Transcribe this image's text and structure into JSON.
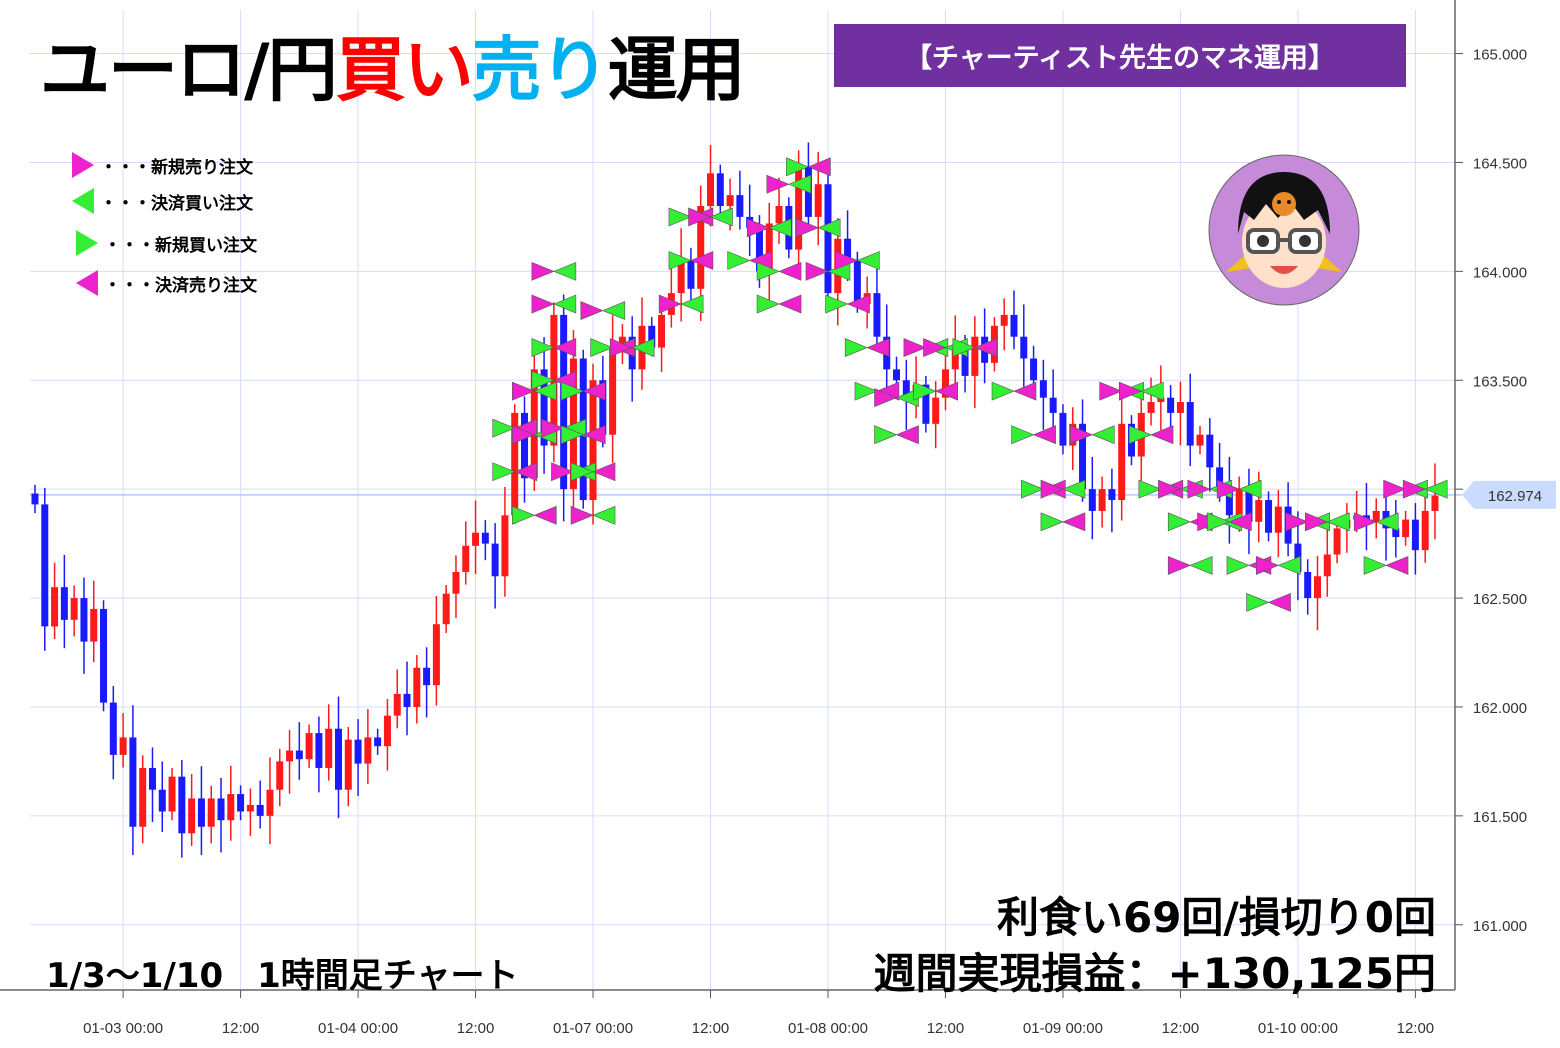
{
  "header": {
    "title_part1": "ユーロ/円",
    "title_part2": "買い",
    "title_part3": "売り",
    "title_part4": "運用",
    "badge": "【チャーティスト先生のマネ運用】"
  },
  "legend": [
    {
      "label": "・・・新規売り注文",
      "icon": "triangle-right-magenta",
      "color": "#ee22cc"
    },
    {
      "label": "・・・決済買い注文",
      "icon": "triangle-left-green",
      "color": "#33ee33"
    },
    {
      "label": "・・・新規買い注文",
      "icon": "triangle-right-green",
      "color": "#33ee33"
    },
    {
      "label": "・・・決済売り注文",
      "icon": "triangle-left-magenta",
      "color": "#ee22cc"
    }
  ],
  "stats": {
    "line1": "利食い69回/損切り0回",
    "line2": "週間実現損益：+130,125円"
  },
  "period_label": "1/3～1/10　1時間足チャート",
  "avatar": {
    "icon": "teacher-avatar-icon",
    "bg": "#c58bd8"
  },
  "colors": {
    "title_black": "#000000",
    "title_buy": "#ff0000",
    "title_sell": "#00b0f0",
    "badge_bg": "#7030a0",
    "candle_up": "#ff1a1a",
    "candle_down": "#1a1aff",
    "grid": "#d6dcff",
    "current_price_line": "#b4c8ff",
    "price_tag_bg": "#c9dcff"
  },
  "chart_data": {
    "type": "candlestick",
    "timeframe": "1h",
    "x_tick_labels": [
      "01-03 00:00",
      "12:00",
      "01-04 00:00",
      "12:00",
      "01-07 00:00",
      "12:00",
      "01-08 00:00",
      "12:00",
      "01-09 00:00",
      "12:00",
      "01-10 00:00",
      "12:00"
    ],
    "y_tick_labels": [
      "161.000",
      "161.500",
      "162.000",
      "162.500",
      "163.000",
      "163.500",
      "164.000",
      "164.500",
      "165.000"
    ],
    "ylim": [
      160.9,
      165.2
    ],
    "current_price": 162.974,
    "current_price_label": "162.974",
    "grid": true,
    "close_path": [
      [
        0,
        162.93
      ],
      [
        1,
        162.37
      ],
      [
        2,
        162.55
      ],
      [
        3,
        162.4
      ],
      [
        4,
        162.5
      ],
      [
        5,
        162.3
      ],
      [
        6,
        162.45
      ],
      [
        7,
        162.02
      ],
      [
        8,
        161.78
      ],
      [
        9,
        161.86
      ],
      [
        10,
        161.45
      ],
      [
        11,
        161.72
      ],
      [
        12,
        161.62
      ],
      [
        13,
        161.52
      ],
      [
        14,
        161.68
      ],
      [
        15,
        161.42
      ],
      [
        16,
        161.58
      ],
      [
        17,
        161.45
      ],
      [
        18,
        161.58
      ],
      [
        19,
        161.48
      ],
      [
        20,
        161.6
      ],
      [
        21,
        161.52
      ],
      [
        22,
        161.55
      ],
      [
        23,
        161.5
      ],
      [
        24,
        161.62
      ],
      [
        25,
        161.75
      ],
      [
        26,
        161.8
      ],
      [
        27,
        161.76
      ],
      [
        28,
        161.88
      ],
      [
        29,
        161.72
      ],
      [
        30,
        161.9
      ],
      [
        31,
        161.62
      ],
      [
        32,
        161.85
      ],
      [
        33,
        161.74
      ],
      [
        34,
        161.86
      ],
      [
        35,
        161.82
      ],
      [
        36,
        161.96
      ],
      [
        37,
        162.06
      ],
      [
        38,
        162.0
      ],
      [
        39,
        162.18
      ],
      [
        40,
        162.1
      ],
      [
        41,
        162.38
      ],
      [
        42,
        162.52
      ],
      [
        43,
        162.62
      ],
      [
        44,
        162.74
      ],
      [
        45,
        162.8
      ],
      [
        46,
        162.75
      ],
      [
        47,
        162.6
      ],
      [
        48,
        162.88
      ],
      [
        49,
        163.35
      ],
      [
        50,
        163.05
      ],
      [
        51,
        163.55
      ],
      [
        52,
        163.2
      ],
      [
        53,
        163.8
      ],
      [
        54,
        163.0
      ],
      [
        55,
        163.6
      ],
      [
        56,
        162.95
      ],
      [
        57,
        163.5
      ],
      [
        58,
        163.25
      ],
      [
        59,
        163.65
      ],
      [
        60,
        163.7
      ],
      [
        61,
        163.55
      ],
      [
        62,
        163.75
      ],
      [
        63,
        163.65
      ],
      [
        64,
        163.8
      ],
      [
        65,
        163.9
      ],
      [
        66,
        164.05
      ],
      [
        67,
        163.92
      ],
      [
        68,
        164.3
      ],
      [
        69,
        164.45
      ],
      [
        70,
        164.3
      ],
      [
        71,
        164.35
      ],
      [
        72,
        164.25
      ],
      [
        73,
        164.2
      ],
      [
        74,
        164.0
      ],
      [
        75,
        164.22
      ],
      [
        76,
        164.3
      ],
      [
        77,
        164.1
      ],
      [
        78,
        164.48
      ],
      [
        79,
        164.25
      ],
      [
        80,
        164.4
      ],
      [
        81,
        163.9
      ],
      [
        82,
        164.15
      ],
      [
        83,
        164.05
      ],
      [
        84,
        163.85
      ],
      [
        85,
        163.9
      ],
      [
        86,
        163.7
      ],
      [
        87,
        163.55
      ],
      [
        88,
        163.5
      ],
      [
        89,
        163.42
      ],
      [
        90,
        163.48
      ],
      [
        91,
        163.3
      ],
      [
        92,
        163.42
      ],
      [
        93,
        163.55
      ],
      [
        94,
        163.65
      ],
      [
        95,
        163.52
      ],
      [
        96,
        163.7
      ],
      [
        97,
        163.58
      ],
      [
        98,
        163.75
      ],
      [
        99,
        163.8
      ],
      [
        100,
        163.7
      ],
      [
        101,
        163.6
      ],
      [
        102,
        163.5
      ],
      [
        103,
        163.42
      ],
      [
        104,
        163.35
      ],
      [
        105,
        163.2
      ],
      [
        106,
        163.3
      ],
      [
        107,
        163.0
      ],
      [
        108,
        162.9
      ],
      [
        109,
        163.0
      ],
      [
        110,
        162.95
      ],
      [
        111,
        163.3
      ],
      [
        112,
        163.15
      ],
      [
        113,
        163.35
      ],
      [
        114,
        163.4
      ],
      [
        115,
        163.42
      ],
      [
        116,
        163.35
      ],
      [
        117,
        163.4
      ],
      [
        118,
        163.2
      ],
      [
        119,
        163.25
      ],
      [
        120,
        163.1
      ],
      [
        121,
        163.0
      ],
      [
        122,
        162.88
      ],
      [
        123,
        163.0
      ],
      [
        124,
        162.85
      ],
      [
        125,
        162.95
      ],
      [
        126,
        162.8
      ],
      [
        127,
        162.92
      ],
      [
        128,
        162.75
      ],
      [
        129,
        162.62
      ],
      [
        130,
        162.5
      ],
      [
        131,
        162.6
      ],
      [
        132,
        162.7
      ],
      [
        133,
        162.82
      ],
      [
        134,
        162.86
      ],
      [
        135,
        162.88
      ],
      [
        136,
        162.85
      ],
      [
        137,
        162.9
      ],
      [
        138,
        162.82
      ],
      [
        139,
        162.78
      ],
      [
        140,
        162.86
      ],
      [
        141,
        162.72
      ],
      [
        142,
        162.9
      ],
      [
        143,
        162.97
      ]
    ],
    "orders": [
      {
        "x": 49,
        "y": 163.28,
        "type": "buy"
      },
      {
        "x": 49,
        "y": 163.08,
        "type": "buy"
      },
      {
        "x": 51,
        "y": 163.45,
        "type": "sell"
      },
      {
        "x": 51,
        "y": 163.25,
        "type": "sell"
      },
      {
        "x": 51,
        "y": 162.88,
        "type": "buy"
      },
      {
        "x": 53,
        "y": 164.0,
        "type": "sell"
      },
      {
        "x": 53,
        "y": 163.85,
        "type": "sell"
      },
      {
        "x": 53,
        "y": 163.65,
        "type": "buy"
      },
      {
        "x": 53,
        "y": 163.5,
        "type": "buy"
      },
      {
        "x": 54,
        "y": 163.28,
        "type": "sell"
      },
      {
        "x": 55,
        "y": 163.08,
        "type": "sell"
      },
      {
        "x": 56,
        "y": 163.45,
        "type": "buy"
      },
      {
        "x": 56,
        "y": 163.25,
        "type": "buy"
      },
      {
        "x": 57,
        "y": 162.88,
        "type": "sell"
      },
      {
        "x": 57,
        "y": 163.08,
        "type": "buy"
      },
      {
        "x": 58,
        "y": 163.82,
        "type": "sell"
      },
      {
        "x": 59,
        "y": 163.65,
        "type": "buy"
      },
      {
        "x": 61,
        "y": 163.65,
        "type": "sell"
      },
      {
        "x": 66,
        "y": 163.85,
        "type": "sell"
      },
      {
        "x": 67,
        "y": 164.25,
        "type": "buy"
      },
      {
        "x": 67,
        "y": 164.05,
        "type": "buy"
      },
      {
        "x": 69,
        "y": 164.25,
        "type": "sell"
      },
      {
        "x": 73,
        "y": 164.05,
        "type": "buy"
      },
      {
        "x": 75,
        "y": 164.2,
        "type": "sell"
      },
      {
        "x": 76,
        "y": 164.0,
        "type": "buy"
      },
      {
        "x": 76,
        "y": 163.85,
        "type": "buy"
      },
      {
        "x": 77,
        "y": 164.4,
        "type": "sell"
      },
      {
        "x": 79,
        "y": 164.48,
        "type": "buy"
      },
      {
        "x": 80,
        "y": 164.2,
        "type": "sell"
      },
      {
        "x": 81,
        "y": 164.0,
        "type": "sell"
      },
      {
        "x": 83,
        "y": 163.85,
        "type": "buy"
      },
      {
        "x": 84,
        "y": 164.05,
        "type": "sell"
      },
      {
        "x": 85,
        "y": 163.65,
        "type": "buy"
      },
      {
        "x": 86,
        "y": 163.45,
        "type": "buy"
      },
      {
        "x": 88,
        "y": 163.42,
        "type": "sell"
      },
      {
        "x": 88,
        "y": 163.25,
        "type": "buy"
      },
      {
        "x": 91,
        "y": 163.65,
        "type": "sell"
      },
      {
        "x": 92,
        "y": 163.45,
        "type": "buy"
      },
      {
        "x": 93,
        "y": 163.65,
        "type": "sell"
      },
      {
        "x": 96,
        "y": 163.65,
        "type": "buy"
      },
      {
        "x": 100,
        "y": 163.45,
        "type": "buy"
      },
      {
        "x": 102,
        "y": 163.25,
        "type": "buy"
      },
      {
        "x": 103,
        "y": 163.0,
        "type": "buy"
      },
      {
        "x": 105,
        "y": 162.85,
        "type": "buy"
      },
      {
        "x": 105,
        "y": 163.0,
        "type": "sell"
      },
      {
        "x": 108,
        "y": 163.25,
        "type": "sell"
      },
      {
        "x": 111,
        "y": 163.45,
        "type": "sell"
      },
      {
        "x": 113,
        "y": 163.45,
        "type": "sell"
      },
      {
        "x": 114,
        "y": 163.25,
        "type": "buy"
      },
      {
        "x": 115,
        "y": 163.0,
        "type": "buy"
      },
      {
        "x": 117,
        "y": 163.0,
        "type": "sell"
      },
      {
        "x": 118,
        "y": 162.85,
        "type": "buy"
      },
      {
        "x": 118,
        "y": 162.65,
        "type": "sell"
      },
      {
        "x": 120,
        "y": 163.0,
        "type": "sell"
      },
      {
        "x": 121,
        "y": 162.85,
        "type": "sell"
      },
      {
        "x": 122,
        "y": 162.85,
        "type": "buy"
      },
      {
        "x": 123,
        "y": 163.0,
        "type": "sell"
      },
      {
        "x": 124,
        "y": 162.65,
        "type": "buy"
      },
      {
        "x": 126,
        "y": 162.48,
        "type": "buy"
      },
      {
        "x": 127,
        "y": 162.65,
        "type": "sell"
      },
      {
        "x": 130,
        "y": 162.85,
        "type": "sell"
      },
      {
        "x": 132,
        "y": 162.85,
        "type": "sell"
      },
      {
        "x": 137,
        "y": 162.85,
        "type": "sell"
      },
      {
        "x": 138,
        "y": 162.65,
        "type": "buy"
      },
      {
        "x": 140,
        "y": 163.0,
        "type": "sell"
      },
      {
        "x": 142,
        "y": 163.0,
        "type": "sell"
      }
    ]
  }
}
